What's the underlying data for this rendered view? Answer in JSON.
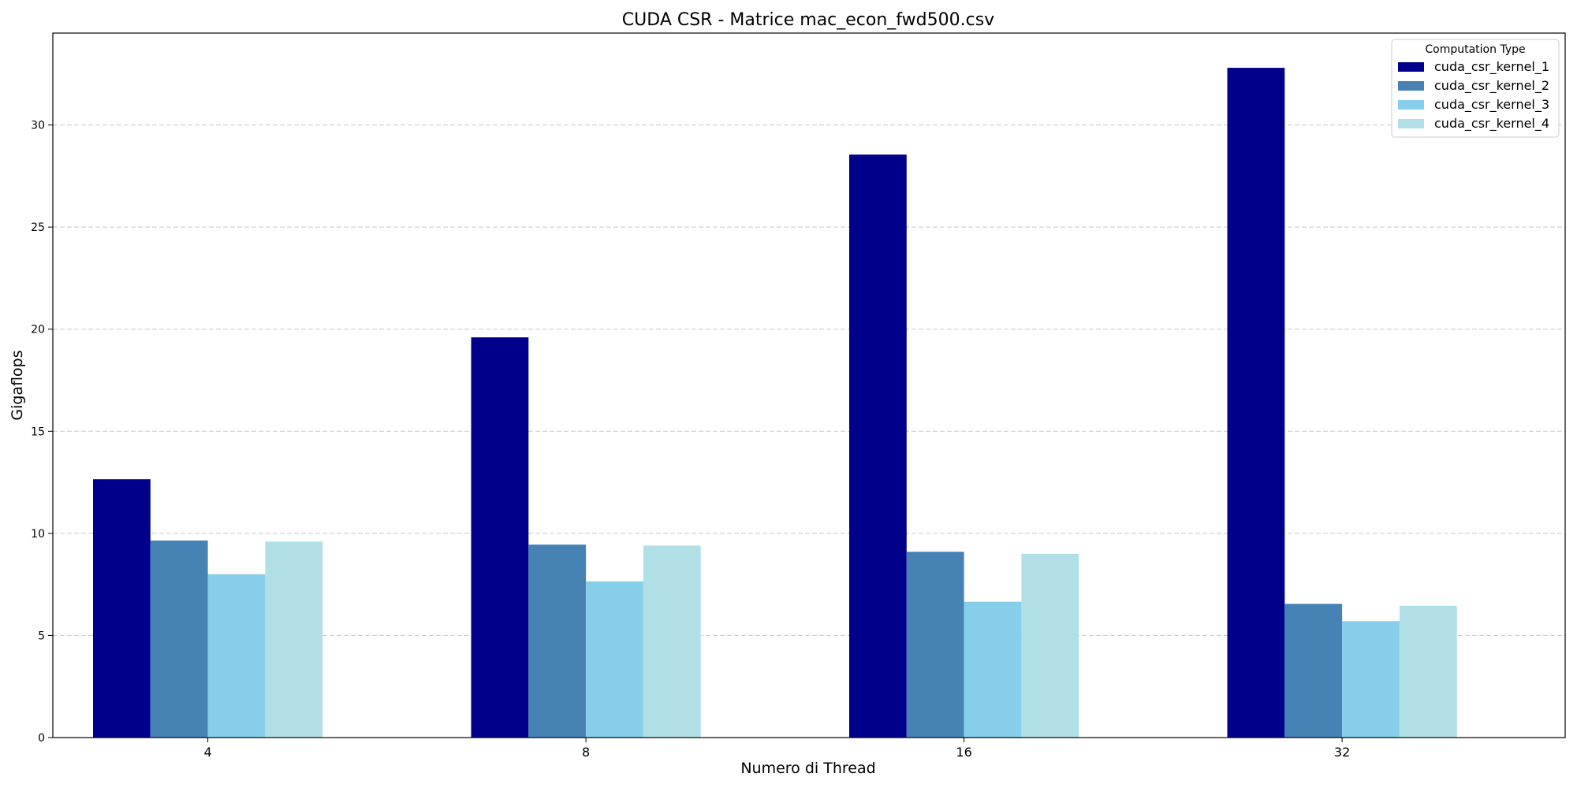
{
  "chart_data": {
    "type": "bar",
    "title": "CUDA CSR - Matrice mac_econ_fwd500.csv",
    "xlabel": "Numero di Thread",
    "ylabel": "Gigaflops",
    "categories": [
      "4",
      "8",
      "16",
      "32"
    ],
    "ylim": [
      0,
      34.5
    ],
    "yticks": [
      0,
      5,
      10,
      15,
      20,
      25,
      30
    ],
    "grid": "horizontal-dashed",
    "legend": {
      "title": "Computation Type",
      "placement": "top-right"
    },
    "series": [
      {
        "name": "cuda_csr_kernel_1",
        "color": "#00008b",
        "values": [
          12.65,
          19.6,
          28.55,
          32.8
        ]
      },
      {
        "name": "cuda_csr_kernel_2",
        "color": "#4682b4",
        "values": [
          9.65,
          9.45,
          9.1,
          6.55
        ]
      },
      {
        "name": "cuda_csr_kernel_3",
        "color": "#87ceeb",
        "values": [
          8.0,
          7.65,
          6.65,
          5.7
        ]
      },
      {
        "name": "cuda_csr_kernel_4",
        "color": "#b0e0e6",
        "values": [
          9.6,
          9.4,
          9.0,
          6.45
        ]
      }
    ]
  }
}
